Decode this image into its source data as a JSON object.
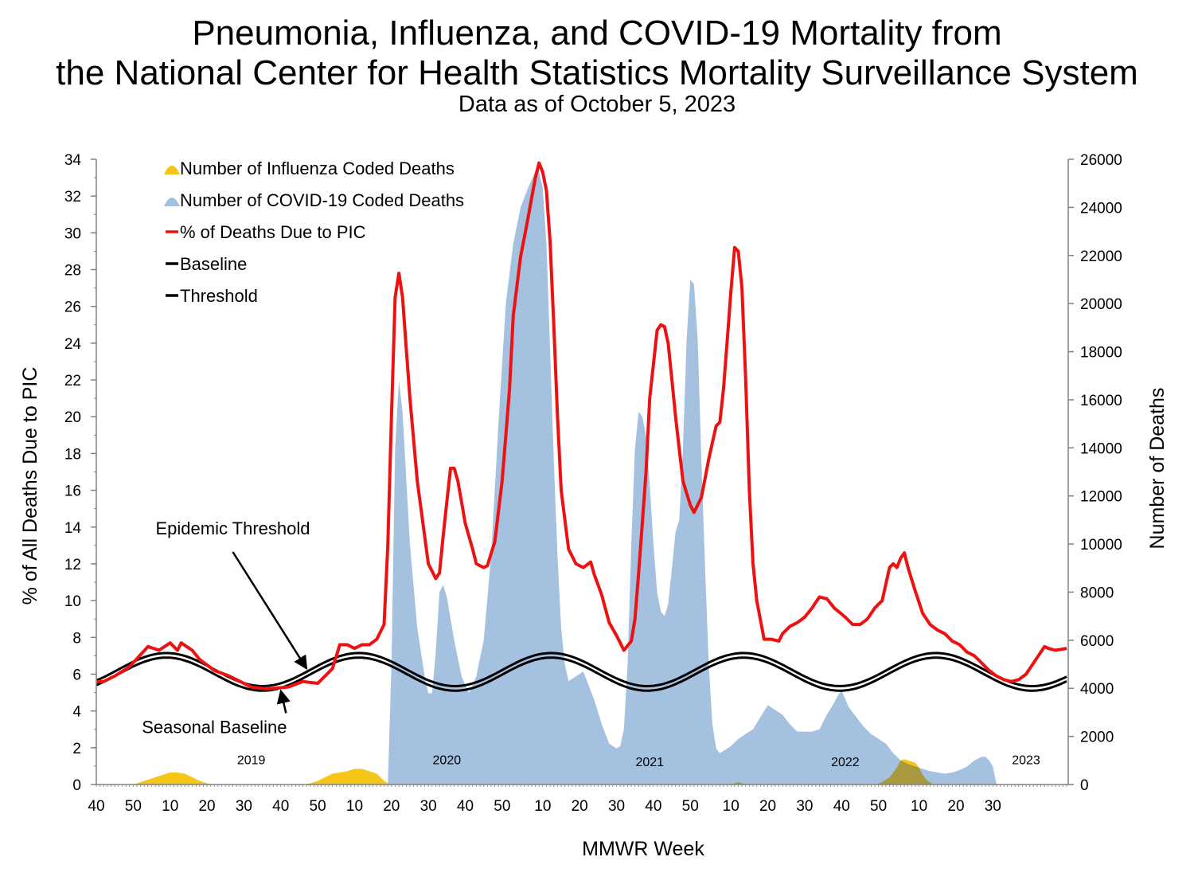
{
  "title_line1": "Pneumonia, Influenza, and COVID-19 Mortality from",
  "title_line2": "the National Center for Health Statistics Mortality Surveillance System",
  "subtitle": "Data as of October 5, 2023",
  "colors": {
    "pic_line": "#ee1111",
    "covid_fill": "#a4c1e0",
    "flu_fill": "#f5c518",
    "flu_overlap_fill": "#a89a3c",
    "baseline": "#000000",
    "axis": "#808080"
  },
  "chart_data": {
    "type": "area",
    "title": "Pneumonia, Influenza, and COVID-19 Mortality from the National Center for Health Statistics Mortality Surveillance System",
    "xlabel": "MMWR Week",
    "ylabel_left": "% of All Deaths Due to PIC",
    "ylabel_right": "Number of Deaths",
    "ylim_left": [
      0,
      34
    ],
    "ylim_right": [
      0,
      26000
    ],
    "left_ticks": [
      "0",
      "2",
      "4",
      "6",
      "8",
      "10",
      "12",
      "14",
      "16",
      "18",
      "20",
      "22",
      "24",
      "26",
      "28",
      "30",
      "32",
      "34"
    ],
    "right_ticks": [
      "0",
      "2000",
      "4000",
      "6000",
      "8000",
      "10000",
      "12000",
      "14000",
      "16000",
      "18000",
      "20000",
      "22000",
      "24000",
      "26000"
    ],
    "x_tick_labels": [
      "40",
      "50",
      "10",
      "20",
      "30",
      "40",
      "50",
      "10",
      "20",
      "30",
      "40",
      "50",
      "10",
      "20",
      "30",
      "40",
      "50",
      "10",
      "20",
      "30",
      "40",
      "50",
      "10",
      "20",
      "30"
    ],
    "x_tick_index": [
      0,
      10,
      20,
      30,
      40,
      50,
      60,
      70,
      80,
      90,
      100,
      110,
      121,
      131,
      141,
      151,
      161,
      172,
      182,
      192,
      202,
      212,
      223,
      233,
      243
    ],
    "year_labels": [
      {
        "text": "2019",
        "x_index": 42,
        "y_pct": 1.1
      },
      {
        "text": "2020",
        "x_index": 95,
        "y_pct": 1.1
      },
      {
        "text": "2021",
        "x_index": 150,
        "y_pct": 1.0
      },
      {
        "text": "2022",
        "x_index": 203,
        "y_pct": 1.0
      },
      {
        "text": "2023",
        "x_index": 252,
        "y_pct": 1.1
      }
    ],
    "legend": [
      {
        "label": "Number of Influenza Coded Deaths",
        "marker": "area",
        "color": "#f5c518"
      },
      {
        "label": "Number of COVID-19 Coded Deaths",
        "marker": "area",
        "color": "#a4c1e0"
      },
      {
        "label": "% of Deaths Due to PIC",
        "marker": "line",
        "color": "#ee1111"
      },
      {
        "label": "Baseline",
        "marker": "line",
        "color": "#000000"
      },
      {
        "label": "Threshold",
        "marker": "line",
        "color": "#000000"
      }
    ],
    "legend_position": "top-left",
    "annotations": [
      {
        "text": "Epidemic Threshold",
        "x_index": 37,
        "y_pct": 13.6,
        "target_index": 57,
        "target_pct": 6.3
      },
      {
        "text": "Seasonal Baseline",
        "x_index": 32,
        "y_pct": 2.8,
        "target_index": 50,
        "target_pct": 5.1
      }
    ],
    "week_count": 264,
    "baseline": {
      "mean_pct": 6.0,
      "amplitude_pct": 0.9,
      "period_weeks": 52.14,
      "peak_week_index": 19
    },
    "threshold_offset_pct": 0.25,
    "pic_pct_keypoints": [
      [
        0,
        5.6
      ],
      [
        2,
        5.6
      ],
      [
        5,
        5.9
      ],
      [
        9,
        6.4
      ],
      [
        14,
        7.5
      ],
      [
        17,
        7.3
      ],
      [
        20,
        7.7
      ],
      [
        22,
        7.3
      ],
      [
        23,
        7.7
      ],
      [
        26,
        7.3
      ],
      [
        28,
        6.8
      ],
      [
        32,
        6.2
      ],
      [
        36,
        5.9
      ],
      [
        42,
        5.3
      ],
      [
        46,
        5.2
      ],
      [
        52,
        5.3
      ],
      [
        56,
        5.6
      ],
      [
        60,
        5.5
      ],
      [
        62,
        5.9
      ],
      [
        64,
        6.3
      ],
      [
        66,
        7.6
      ],
      [
        68,
        7.6
      ],
      [
        70,
        7.4
      ],
      [
        72,
        7.6
      ],
      [
        74,
        7.6
      ],
      [
        76,
        7.9
      ],
      [
        78,
        8.7
      ],
      [
        79,
        13
      ],
      [
        80,
        20
      ],
      [
        81,
        26.5
      ],
      [
        82,
        27.8
      ],
      [
        83,
        26.5
      ],
      [
        85,
        21
      ],
      [
        87,
        16.5
      ],
      [
        89,
        13.5
      ],
      [
        90,
        12
      ],
      [
        92,
        11.2
      ],
      [
        93,
        11.5
      ],
      [
        94,
        13.5
      ],
      [
        96,
        17.2
      ],
      [
        97,
        17.2
      ],
      [
        98,
        16.5
      ],
      [
        100,
        14.2
      ],
      [
        102,
        12.8
      ],
      [
        103,
        12.0
      ],
      [
        105,
        11.8
      ],
      [
        106,
        11.9
      ],
      [
        108,
        13.2
      ],
      [
        110,
        16.5
      ],
      [
        112,
        21.5
      ],
      [
        113,
        25.5
      ],
      [
        115,
        28.7
      ],
      [
        117,
        30.8
      ],
      [
        119,
        33.0
      ],
      [
        120,
        33.8
      ],
      [
        121,
        33.3
      ],
      [
        122,
        32.3
      ],
      [
        123,
        29.5
      ],
      [
        124,
        25.0
      ],
      [
        125,
        20.0
      ],
      [
        126,
        16.0
      ],
      [
        128,
        12.8
      ],
      [
        130,
        12.0
      ],
      [
        132,
        11.8
      ],
      [
        134,
        12.1
      ],
      [
        135,
        11.4
      ],
      [
        137,
        10.3
      ],
      [
        139,
        8.8
      ],
      [
        141,
        8.1
      ],
      [
        143,
        7.3
      ],
      [
        145,
        7.8
      ],
      [
        146,
        9.0
      ],
      [
        147,
        11.5
      ],
      [
        149,
        17.0
      ],
      [
        150,
        21.0
      ],
      [
        152,
        24.7
      ],
      [
        153,
        25.0
      ],
      [
        154,
        24.9
      ],
      [
        155,
        24.0
      ],
      [
        157,
        20.0
      ],
      [
        159,
        16.5
      ],
      [
        161,
        15.2
      ],
      [
        162,
        14.8
      ],
      [
        164,
        15.6
      ],
      [
        166,
        17.7
      ],
      [
        168,
        19.5
      ],
      [
        169,
        19.7
      ],
      [
        170,
        21.5
      ],
      [
        172,
        26.8
      ],
      [
        173,
        29.2
      ],
      [
        174,
        29.0
      ],
      [
        175,
        27.0
      ],
      [
        176,
        22.0
      ],
      [
        177,
        16.0
      ],
      [
        178,
        12.0
      ],
      [
        179,
        10.0
      ],
      [
        181,
        7.9
      ],
      [
        182,
        7.9
      ],
      [
        183,
        7.9
      ],
      [
        185,
        7.8
      ],
      [
        186,
        8.2
      ],
      [
        188,
        8.6
      ],
      [
        190,
        8.8
      ],
      [
        192,
        9.1
      ],
      [
        194,
        9.6
      ],
      [
        196,
        10.2
      ],
      [
        198,
        10.1
      ],
      [
        200,
        9.6
      ],
      [
        203,
        9.1
      ],
      [
        205,
        8.7
      ],
      [
        207,
        8.7
      ],
      [
        209,
        9.0
      ],
      [
        211,
        9.6
      ],
      [
        213,
        10.0
      ],
      [
        215,
        11.8
      ],
      [
        216,
        12.0
      ],
      [
        217,
        11.8
      ],
      [
        218,
        12.3
      ],
      [
        219,
        12.6
      ],
      [
        220,
        11.8
      ],
      [
        222,
        10.5
      ],
      [
        224,
        9.3
      ],
      [
        226,
        8.7
      ],
      [
        228,
        8.4
      ],
      [
        230,
        8.2
      ],
      [
        232,
        7.8
      ],
      [
        234,
        7.6
      ],
      [
        236,
        7.2
      ],
      [
        238,
        7.0
      ],
      [
        240,
        6.6
      ],
      [
        242,
        6.2
      ],
      [
        244,
        5.9
      ],
      [
        246,
        5.7
      ],
      [
        248,
        5.6
      ],
      [
        250,
        5.7
      ],
      [
        252,
        6.0
      ],
      [
        254,
        6.6
      ],
      [
        256,
        7.2
      ],
      [
        257,
        7.5
      ],
      [
        258,
        7.4
      ],
      [
        260,
        7.3
      ],
      [
        263,
        7.4
      ]
    ],
    "covid_deaths_keypoints": [
      [
        0,
        0
      ],
      [
        78,
        0
      ],
      [
        79,
        0
      ],
      [
        80,
        5000
      ],
      [
        81,
        14000
      ],
      [
        82,
        16800
      ],
      [
        83,
        15500
      ],
      [
        85,
        10000
      ],
      [
        87,
        6500
      ],
      [
        89,
        4500
      ],
      [
        90,
        3800
      ],
      [
        91,
        3800
      ],
      [
        92,
        5500
      ],
      [
        93,
        8000
      ],
      [
        94,
        8300
      ],
      [
        95,
        7800
      ],
      [
        97,
        6000
      ],
      [
        99,
        4500
      ],
      [
        101,
        3800
      ],
      [
        103,
        4500
      ],
      [
        105,
        6000
      ],
      [
        107,
        9500
      ],
      [
        109,
        15000
      ],
      [
        111,
        20000
      ],
      [
        113,
        22500
      ],
      [
        115,
        24000
      ],
      [
        117,
        24800
      ],
      [
        119,
        25500
      ],
      [
        120,
        25500
      ],
      [
        121,
        24800
      ],
      [
        122,
        22500
      ],
      [
        123,
        18000
      ],
      [
        124,
        13500
      ],
      [
        125,
        9500
      ],
      [
        126,
        6500
      ],
      [
        127,
        5000
      ],
      [
        128,
        4300
      ],
      [
        130,
        4500
      ],
      [
        132,
        4700
      ],
      [
        133,
        4300
      ],
      [
        135,
        3500
      ],
      [
        137,
        2500
      ],
      [
        139,
        1700
      ],
      [
        141,
        1500
      ],
      [
        142,
        1600
      ],
      [
        143,
        2300
      ],
      [
        144,
        5000
      ],
      [
        145,
        10000
      ],
      [
        146,
        14000
      ],
      [
        147,
        15500
      ],
      [
        148,
        15300
      ],
      [
        149,
        14500
      ],
      [
        150,
        12500
      ],
      [
        151,
        10000
      ],
      [
        152,
        8000
      ],
      [
        153,
        7200
      ],
      [
        154,
        7000
      ],
      [
        155,
        7500
      ],
      [
        156,
        9000
      ],
      [
        157,
        10500
      ],
      [
        158,
        11000
      ],
      [
        159,
        14000
      ],
      [
        160,
        18500
      ],
      [
        161,
        21000
      ],
      [
        162,
        20800
      ],
      [
        163,
        18500
      ],
      [
        164,
        13500
      ],
      [
        165,
        9000
      ],
      [
        166,
        5000
      ],
      [
        167,
        2500
      ],
      [
        168,
        1500
      ],
      [
        169,
        1300
      ],
      [
        170,
        1400
      ],
      [
        172,
        1600
      ],
      [
        174,
        1900
      ],
      [
        176,
        2100
      ],
      [
        178,
        2300
      ],
      [
        180,
        2800
      ],
      [
        182,
        3300
      ],
      [
        184,
        3100
      ],
      [
        186,
        2900
      ],
      [
        188,
        2500
      ],
      [
        190,
        2200
      ],
      [
        192,
        2200
      ],
      [
        194,
        2200
      ],
      [
        196,
        2300
      ],
      [
        198,
        2900
      ],
      [
        200,
        3400
      ],
      [
        201,
        3700
      ],
      [
        202,
        3900
      ],
      [
        204,
        3200
      ],
      [
        206,
        2800
      ],
      [
        208,
        2400
      ],
      [
        210,
        2100
      ],
      [
        212,
        1900
      ],
      [
        214,
        1700
      ],
      [
        216,
        1300
      ],
      [
        218,
        1000
      ],
      [
        220,
        850
      ],
      [
        222,
        750
      ],
      [
        224,
        650
      ],
      [
        226,
        550
      ],
      [
        228,
        500
      ],
      [
        230,
        450
      ],
      [
        232,
        500
      ],
      [
        234,
        600
      ],
      [
        236,
        750
      ],
      [
        238,
        1000
      ],
      [
        240,
        1150
      ],
      [
        241,
        1150
      ],
      [
        242,
        1000
      ],
      [
        243,
        750
      ]
    ],
    "influenza_deaths_keypoints": [
      [
        0,
        0
      ],
      [
        10,
        0
      ],
      [
        12,
        100
      ],
      [
        14,
        200
      ],
      [
        16,
        300
      ],
      [
        18,
        400
      ],
      [
        20,
        500
      ],
      [
        22,
        500
      ],
      [
        24,
        450
      ],
      [
        26,
        300
      ],
      [
        28,
        150
      ],
      [
        30,
        50
      ],
      [
        32,
        0
      ],
      [
        56,
        0
      ],
      [
        58,
        50
      ],
      [
        60,
        150
      ],
      [
        62,
        300
      ],
      [
        64,
        450
      ],
      [
        66,
        500
      ],
      [
        68,
        550
      ],
      [
        70,
        650
      ],
      [
        72,
        650
      ],
      [
        74,
        550
      ],
      [
        76,
        450
      ],
      [
        78,
        150
      ],
      [
        79,
        50
      ],
      [
        80,
        0
      ],
      [
        124,
        0
      ],
      [
        172,
        0
      ],
      [
        173,
        50
      ],
      [
        174,
        100
      ],
      [
        175,
        50
      ],
      [
        176,
        0
      ],
      [
        211,
        0
      ],
      [
        213,
        100
      ],
      [
        215,
        300
      ],
      [
        217,
        700
      ],
      [
        218,
        1000
      ],
      [
        219,
        1050
      ],
      [
        220,
        1000
      ],
      [
        221,
        950
      ],
      [
        222,
        900
      ],
      [
        223,
        700
      ],
      [
        224,
        400
      ],
      [
        225,
        200
      ],
      [
        226,
        80
      ],
      [
        227,
        0
      ],
      [
        263,
        0
      ]
    ],
    "x_axis_end_index": 263
  }
}
